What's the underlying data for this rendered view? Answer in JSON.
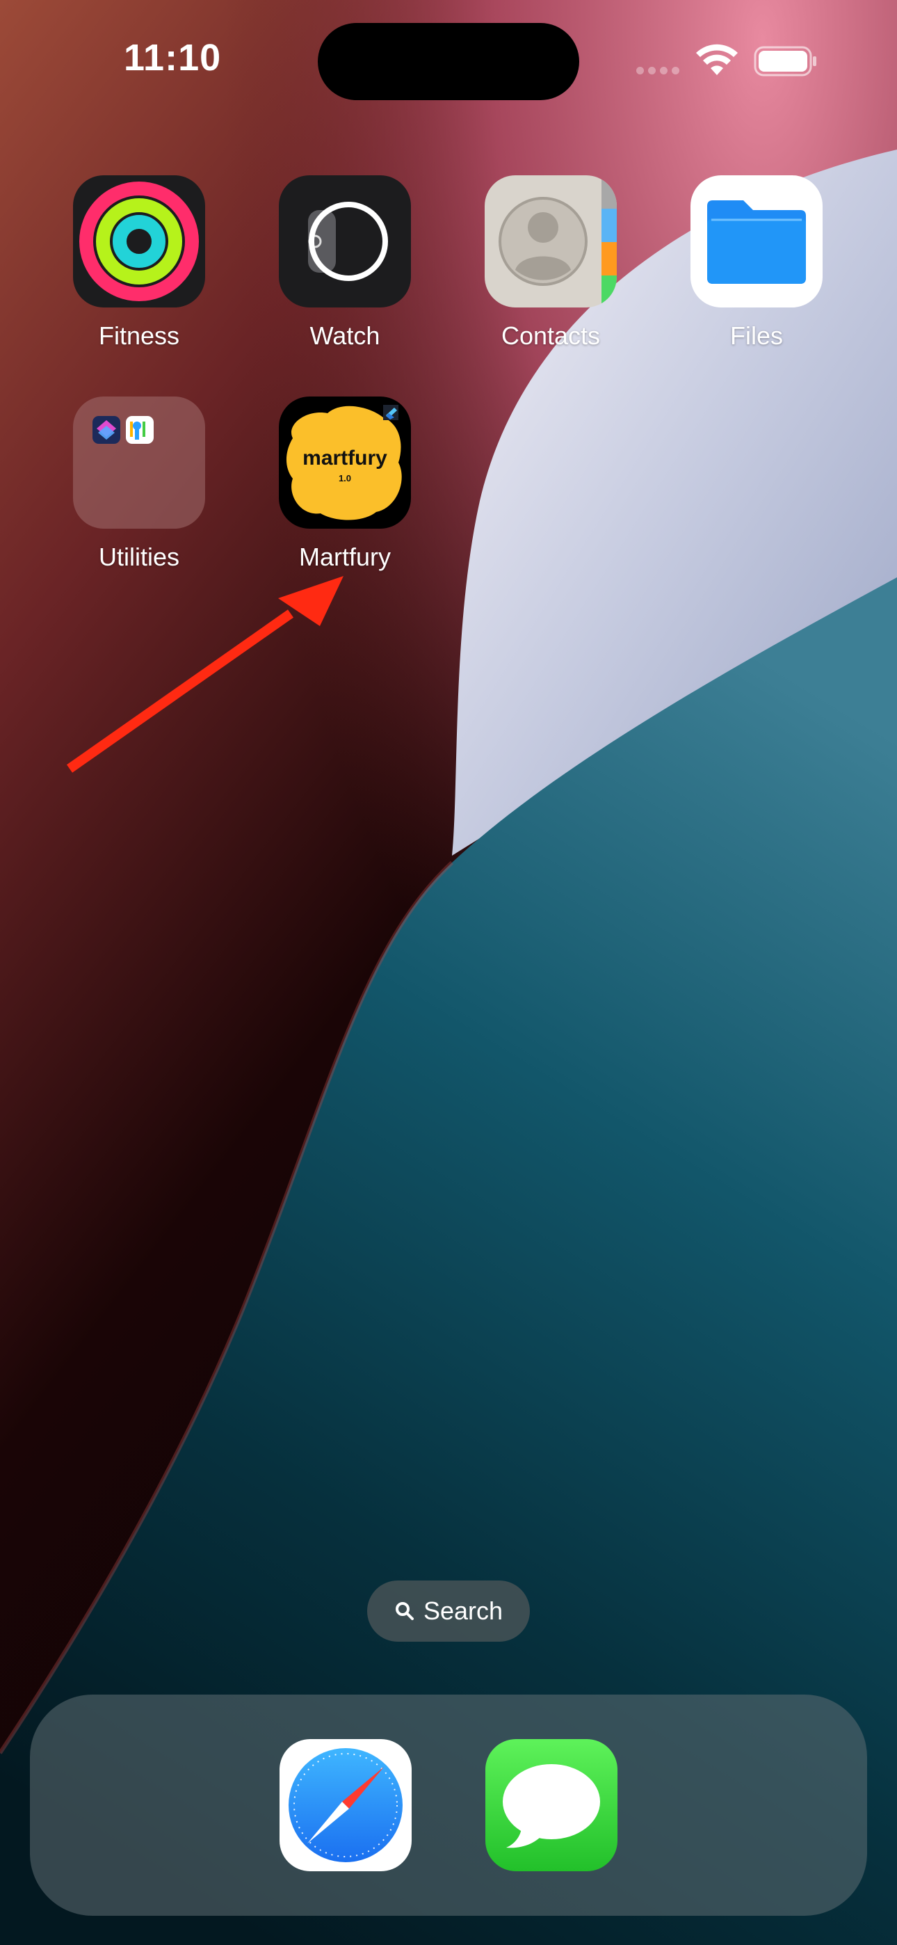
{
  "status_bar": {
    "time": "11:10"
  },
  "home_apps": [
    {
      "id": "fitness",
      "label": "Fitness"
    },
    {
      "id": "watch",
      "label": "Watch"
    },
    {
      "id": "contacts",
      "label": "Contacts"
    },
    {
      "id": "files",
      "label": "Files"
    },
    {
      "id": "utilities",
      "label": "Utilities"
    },
    {
      "id": "martfury",
      "label": "Martfury",
      "icon_text": "martfury",
      "icon_version": "1.0"
    }
  ],
  "search": {
    "label": "Search"
  },
  "dock": [
    {
      "id": "safari",
      "icon": "safari-compass-icon"
    },
    {
      "id": "messages",
      "icon": "messages-bubble-icon"
    }
  ],
  "annotation": {
    "color": "#ff2a12"
  }
}
